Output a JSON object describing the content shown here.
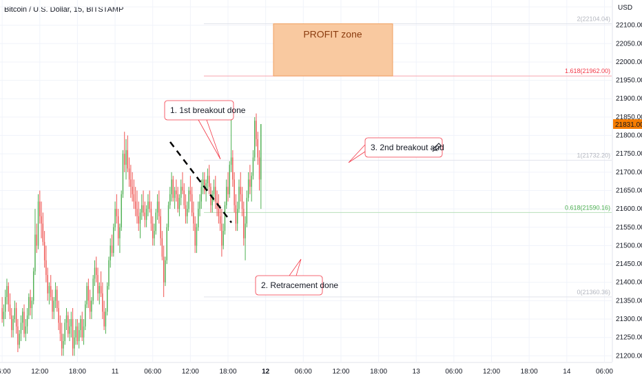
{
  "header": {
    "title": "Bitcoin / U.S. Dollar, 15, BITSTAMP"
  },
  "chart_data": {
    "type": "candlestick",
    "currency_label": "USD",
    "ylim": [
      21180,
      22165
    ],
    "y_ticks": [
      21200,
      21250,
      21300,
      21350,
      21400,
      21450,
      21500,
      21550,
      21600,
      21650,
      21700,
      21750,
      21800,
      21850,
      21900,
      21950,
      22000,
      22050,
      22100,
      22150
    ],
    "y_tick_labels": [
      "21200.00",
      "21250.00",
      "21300.00",
      "21350.00",
      "21400.00",
      "21450.00",
      "21500.00",
      "21550.00",
      "21600.00",
      "21650.00",
      "21700.00",
      "21750.00",
      "21800.00",
      "21850.00",
      "21900.00",
      "21950.00",
      "22000.00",
      "22050.00",
      "22100.00",
      "22150.00"
    ],
    "x_ticks": [
      {
        "label": "06:00",
        "bar": 0
      },
      {
        "label": "12:00",
        "bar": 24
      },
      {
        "label": "18:00",
        "bar": 48
      },
      {
        "label": "11",
        "bar": 72
      },
      {
        "label": "06:00",
        "bar": 96
      },
      {
        "label": "12:00",
        "bar": 120
      },
      {
        "label": "18:00",
        "bar": 144
      },
      {
        "label": "12",
        "bar": 168,
        "bold": true
      },
      {
        "label": "06:00",
        "bar": 192
      },
      {
        "label": "12:00",
        "bar": 216
      },
      {
        "label": "18:00",
        "bar": 240
      },
      {
        "label": "13",
        "bar": 264
      },
      {
        "label": "06:00",
        "bar": 288
      },
      {
        "label": "12:00",
        "bar": 312
      },
      {
        "label": "18:00",
        "bar": 336
      },
      {
        "label": "14",
        "bar": 360
      },
      {
        "label": "06:00",
        "bar": 384
      }
    ],
    "bar_count_visible": 390,
    "last_price": {
      "value": 21831,
      "label": "21831.00",
      "color": "#f57c00"
    },
    "candles": [
      [
        21330,
        21360,
        21290,
        21300
      ],
      [
        21300,
        21340,
        21280,
        21320
      ],
      [
        21320,
        21380,
        21300,
        21360
      ],
      [
        21360,
        21410,
        21340,
        21390
      ],
      [
        21390,
        21400,
        21320,
        21340
      ],
      [
        21340,
        21370,
        21300,
        21310
      ],
      [
        21310,
        21330,
        21250,
        21270
      ],
      [
        21270,
        21310,
        21250,
        21300
      ],
      [
        21300,
        21350,
        21290,
        21330
      ],
      [
        21330,
        21345,
        21260,
        21280
      ],
      [
        21280,
        21300,
        21210,
        21230
      ],
      [
        21230,
        21270,
        21220,
        21260
      ],
      [
        21260,
        21310,
        21240,
        21290
      ],
      [
        21290,
        21330,
        21270,
        21320
      ],
      [
        21320,
        21340,
        21250,
        21260
      ],
      [
        21260,
        21300,
        21240,
        21280
      ],
      [
        21280,
        21330,
        21260,
        21310
      ],
      [
        21310,
        21370,
        21300,
        21360
      ],
      [
        21360,
        21380,
        21310,
        21330
      ],
      [
        21330,
        21360,
        21300,
        21350
      ],
      [
        21350,
        21440,
        21340,
        21430
      ],
      [
        21430,
        21600,
        21420,
        21530
      ],
      [
        21530,
        21560,
        21480,
        21500
      ],
      [
        21500,
        21640,
        21490,
        21620
      ],
      [
        21620,
        21650,
        21560,
        21580
      ],
      [
        21580,
        21620,
        21520,
        21560
      ],
      [
        21560,
        21590,
        21500,
        21510
      ],
      [
        21510,
        21540,
        21440,
        21460
      ],
      [
        21460,
        21500,
        21400,
        21420
      ],
      [
        21420,
        21440,
        21350,
        21370
      ],
      [
        21370,
        21400,
        21340,
        21390
      ],
      [
        21390,
        21420,
        21350,
        21360
      ],
      [
        21360,
        21380,
        21300,
        21320
      ],
      [
        21320,
        21360,
        21300,
        21350
      ],
      [
        21350,
        21400,
        21330,
        21380
      ],
      [
        21380,
        21390,
        21320,
        21330
      ],
      [
        21330,
        21350,
        21270,
        21290
      ],
      [
        21290,
        21310,
        21240,
        21260
      ],
      [
        21260,
        21290,
        21200,
        21220
      ],
      [
        21220,
        21260,
        21200,
        21240
      ],
      [
        21240,
        21300,
        21230,
        21290
      ],
      [
        21290,
        21330,
        21270,
        21310
      ],
      [
        21310,
        21320,
        21250,
        21260
      ],
      [
        21260,
        21300,
        21240,
        21280
      ],
      [
        21280,
        21320,
        21250,
        21300
      ],
      [
        21300,
        21330,
        21200,
        21220
      ],
      [
        21220,
        21270,
        21200,
        21250
      ],
      [
        21250,
        21300,
        21230,
        21280
      ],
      [
        21280,
        21300,
        21230,
        21240
      ],
      [
        21240,
        21290,
        21220,
        21270
      ],
      [
        21270,
        21310,
        21250,
        21300
      ],
      [
        21300,
        21320,
        21240,
        21250
      ],
      [
        21250,
        21300,
        21230,
        21280
      ],
      [
        21280,
        21350,
        21270,
        21340
      ],
      [
        21340,
        21400,
        21330,
        21390
      ],
      [
        21390,
        21410,
        21330,
        21350
      ],
      [
        21350,
        21380,
        21300,
        21320
      ],
      [
        21320,
        21360,
        21300,
        21350
      ],
      [
        21350,
        21420,
        21340,
        21410
      ],
      [
        21410,
        21460,
        21390,
        21440
      ],
      [
        21440,
        21470,
        21400,
        21420
      ],
      [
        21420,
        21440,
        21350,
        21370
      ],
      [
        21370,
        21400,
        21340,
        21390
      ],
      [
        21390,
        21430,
        21360,
        21370
      ],
      [
        21370,
        21400,
        21300,
        21320
      ],
      [
        21320,
        21350,
        21270,
        21280
      ],
      [
        21280,
        21330,
        21260,
        21320
      ],
      [
        21320,
        21400,
        21310,
        21390
      ],
      [
        21390,
        21470,
        21380,
        21460
      ],
      [
        21460,
        21520,
        21440,
        21500
      ],
      [
        21500,
        21530,
        21470,
        21480
      ],
      [
        21480,
        21560,
        21470,
        21550
      ],
      [
        21550,
        21620,
        21540,
        21600
      ],
      [
        21600,
        21640,
        21560,
        21580
      ],
      [
        21580,
        21600,
        21500,
        21520
      ],
      [
        21520,
        21560,
        21480,
        21550
      ],
      [
        21550,
        21650,
        21540,
        21640
      ],
      [
        21640,
        21760,
        21630,
        21750
      ],
      [
        21750,
        21810,
        21700,
        21720
      ],
      [
        21720,
        21790,
        21680,
        21760
      ],
      [
        21760,
        21800,
        21700,
        21710
      ],
      [
        21710,
        21740,
        21660,
        21680
      ],
      [
        21680,
        21720,
        21630,
        21660
      ],
      [
        21660,
        21700,
        21620,
        21640
      ],
      [
        21640,
        21680,
        21600,
        21620
      ],
      [
        21620,
        21660,
        21580,
        21600
      ],
      [
        21600,
        21650,
        21560,
        21580
      ],
      [
        21580,
        21620,
        21540,
        21560
      ],
      [
        21560,
        21600,
        21520,
        21590
      ],
      [
        21590,
        21640,
        21570,
        21610
      ],
      [
        21610,
        21650,
        21580,
        21590
      ],
      [
        21590,
        21620,
        21550,
        21570
      ],
      [
        21570,
        21610,
        21550,
        21600
      ],
      [
        21600,
        21640,
        21580,
        21620
      ],
      [
        21620,
        21650,
        21590,
        21600
      ],
      [
        21600,
        21620,
        21540,
        21560
      ],
      [
        21560,
        21580,
        21500,
        21520
      ],
      [
        21520,
        21560,
        21500,
        21540
      ],
      [
        21540,
        21600,
        21530,
        21590
      ],
      [
        21590,
        21640,
        21570,
        21620
      ],
      [
        21620,
        21650,
        21560,
        21580
      ],
      [
        21580,
        21600,
        21500,
        21520
      ],
      [
        21520,
        21540,
        21460,
        21470
      ],
      [
        21470,
        21500,
        21360,
        21400
      ],
      [
        21400,
        21470,
        21390,
        21460
      ],
      [
        21460,
        21560,
        21450,
        21550
      ],
      [
        21550,
        21620,
        21540,
        21610
      ],
      [
        21610,
        21660,
        21600,
        21640
      ],
      [
        21640,
        21700,
        21620,
        21680
      ],
      [
        21680,
        21690,
        21620,
        21630
      ],
      [
        21630,
        21660,
        21600,
        21650
      ],
      [
        21650,
        21680,
        21620,
        21640
      ],
      [
        21640,
        21660,
        21590,
        21600
      ],
      [
        21600,
        21640,
        21580,
        21630
      ],
      [
        21630,
        21680,
        21610,
        21660
      ],
      [
        21660,
        21700,
        21640,
        21650
      ],
      [
        21650,
        21670,
        21600,
        21610
      ],
      [
        21610,
        21640,
        21560,
        21580
      ],
      [
        21580,
        21620,
        21560,
        21600
      ],
      [
        21600,
        21660,
        21590,
        21650
      ],
      [
        21650,
        21690,
        21620,
        21640
      ],
      [
        21640,
        21660,
        21580,
        21590
      ],
      [
        21590,
        21620,
        21540,
        21560
      ],
      [
        21560,
        21580,
        21480,
        21500
      ],
      [
        21500,
        21560,
        21480,
        21550
      ],
      [
        21550,
        21620,
        21540,
        21600
      ],
      [
        21600,
        21640,
        21580,
        21620
      ],
      [
        21620,
        21680,
        21600,
        21660
      ],
      [
        21660,
        21700,
        21640,
        21680
      ],
      [
        21680,
        21700,
        21640,
        21650
      ],
      [
        21650,
        21680,
        21620,
        21670
      ],
      [
        21670,
        21710,
        21650,
        21690
      ],
      [
        21690,
        21720,
        21640,
        21660
      ],
      [
        21660,
        21670,
        21590,
        21610
      ],
      [
        21610,
        21650,
        21590,
        21640
      ],
      [
        21640,
        21680,
        21620,
        21660
      ],
      [
        21660,
        21690,
        21600,
        21620
      ],
      [
        21620,
        21650,
        21580,
        21600
      ],
      [
        21600,
        21640,
        21560,
        21580
      ],
      [
        21580,
        21610,
        21540,
        21560
      ],
      [
        21560,
        21600,
        21470,
        21500
      ],
      [
        21500,
        21560,
        21490,
        21540
      ],
      [
        21540,
        21620,
        21530,
        21610
      ],
      [
        21610,
        21680,
        21600,
        21660
      ],
      [
        21660,
        21700,
        21620,
        21640
      ],
      [
        21640,
        21730,
        21630,
        21720
      ],
      [
        21720,
        21870,
        21700,
        21740
      ],
      [
        21740,
        21760,
        21660,
        21680
      ],
      [
        21680,
        21700,
        21590,
        21610
      ],
      [
        21610,
        21640,
        21540,
        21560
      ],
      [
        21560,
        21620,
        21540,
        21600
      ],
      [
        21600,
        21680,
        21590,
        21660
      ],
      [
        21660,
        21700,
        21620,
        21640
      ],
      [
        21640,
        21660,
        21580,
        21600
      ],
      [
        21600,
        21620,
        21500,
        21520
      ],
      [
        21520,
        21580,
        21460,
        21560
      ],
      [
        21560,
        21650,
        21550,
        21630
      ],
      [
        21630,
        21700,
        21620,
        21680
      ],
      [
        21680,
        21720,
        21640,
        21660
      ],
      [
        21660,
        21700,
        21620,
        21690
      ],
      [
        21690,
        21760,
        21680,
        21740
      ],
      [
        21740,
        21850,
        21730,
        21840
      ],
      [
        21840,
        21860,
        21770,
        21790
      ],
      [
        21790,
        21810,
        21720,
        21740
      ],
      [
        21740,
        21760,
        21650,
        21680
      ],
      [
        21680,
        21830,
        21600,
        21831
      ]
    ]
  },
  "fib_levels": [
    {
      "label": "2(22104.04)",
      "value": 22104.04,
      "color": "#b2b5be",
      "line_color": "#e0e3eb"
    },
    {
      "label": "1.618(21962.00)",
      "value": 21962.0,
      "color": "#f23645",
      "line_color": "#f7a6ad"
    },
    {
      "label": "1(21732.20)",
      "value": 21732.2,
      "color": "#b2b5be",
      "line_color": "#e0e3eb"
    },
    {
      "label": "0.618(21590.16)",
      "value": 21590.16,
      "color": "#4caf50",
      "line_color": "#b7dfb9"
    },
    {
      "label": "0(21360.36)",
      "value": 21360.36,
      "color": "#b2b5be",
      "line_color": "#e0e3eb"
    }
  ],
  "profit_zone": {
    "label": "PROFIT zone",
    "top": 22104.04,
    "bottom": 21962.0,
    "fill": "#f9c9a0",
    "stroke": "#f0a060"
  },
  "annotations": [
    {
      "id": "a1",
      "text": "1. 1st breakout done"
    },
    {
      "id": "a2",
      "text": "2. Retracement done"
    },
    {
      "id": "a3",
      "text": "3. 2nd breakout and"
    }
  ],
  "colors": {
    "up": "#26a69a",
    "up_green": "#4caf50",
    "down": "#ef5350",
    "grid": "#f0f3fa",
    "axis": "#e0e3eb"
  },
  "icons": {
    "rocket": "rocket-icon"
  }
}
